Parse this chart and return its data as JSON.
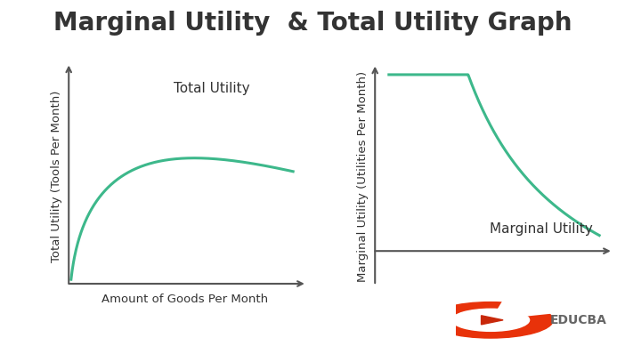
{
  "title": "Marginal Utility  & Total Utility Graph",
  "title_fontsize": 20,
  "title_fontweight": "bold",
  "background_color": "#ffffff",
  "curve_color": "#3db88b",
  "curve_linewidth": 2.2,
  "axis_color": "#555555",
  "left_ylabel": "Total Utility (Tools Per Month)",
  "left_xlabel": "Amount of Goods Per Month",
  "left_label": "Total Utility",
  "right_ylabel": "Marginal Utility (Utilities Per Month)",
  "right_label": "Marginal Utility",
  "label_fontsize": 11,
  "axis_label_fontsize": 9.5,
  "text_color": "#333333",
  "logo_text": "EDUCBA",
  "logo_text_color": "#666666",
  "logo_outer_color": "#e83010",
  "logo_inner_color": "#ffffff",
  "logo_play_color": "#cc2200"
}
